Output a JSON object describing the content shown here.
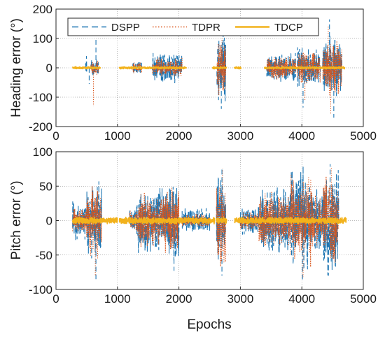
{
  "chart_data": [
    {
      "type": "line",
      "title": "",
      "xlabel": "",
      "ylabel": "Heading error (°)",
      "xlim": [
        0,
        5000
      ],
      "ylim": [
        -200,
        200
      ],
      "xticks": [
        "0",
        "1000",
        "2000",
        "3000",
        "4000",
        "5000"
      ],
      "yticks": [
        "200",
        "100",
        "0",
        "-100",
        "-200"
      ],
      "grid": true,
      "legend_position": "top",
      "series": [
        {
          "name": "DSPP",
          "style": "dashed",
          "color": "#1f77b4",
          "segments": [
            [
              270,
              720
            ],
            [
              1030,
              2120
            ],
            [
              2550,
              2780
            ],
            [
              2900,
              3010
            ],
            [
              3390,
              4700
            ]
          ],
          "bursts": [
            [
              480,
              500,
              60
            ],
            [
              570,
              690,
              30
            ],
            [
              1250,
              1400,
              25
            ],
            [
              1570,
              2050,
              55
            ],
            [
              2620,
              2760,
              130
            ],
            [
              3430,
              3900,
              55
            ],
            [
              3930,
              4300,
              70
            ],
            [
              4340,
              4650,
              110
            ]
          ],
          "peaks": [
            [
              540,
              -55
            ],
            [
              650,
              100
            ],
            [
              2690,
              -140
            ],
            [
              2720,
              120
            ],
            [
              4020,
              -135
            ],
            [
              4450,
              165
            ],
            [
              4520,
              -170
            ]
          ]
        },
        {
          "name": "TDPR",
          "style": "dotted",
          "color": "#d95319",
          "segments": [
            [
              270,
              720
            ],
            [
              1030,
              2120
            ],
            [
              2550,
              2780
            ],
            [
              2900,
              3010
            ],
            [
              3390,
              4700
            ]
          ],
          "bursts": [
            [
              570,
              690,
              25
            ],
            [
              1250,
              1400,
              20
            ],
            [
              1570,
              2050,
              35
            ],
            [
              2620,
              2760,
              100
            ],
            [
              3430,
              3900,
              40
            ],
            [
              3930,
              4300,
              55
            ],
            [
              4340,
              4650,
              100
            ]
          ],
          "peaks": [
            [
              610,
              -130
            ],
            [
              2700,
              100
            ],
            [
              4050,
              -110
            ],
            [
              4470,
              -160
            ],
            [
              4430,
              140
            ]
          ]
        },
        {
          "name": "TDCP",
          "style": "solid",
          "color": "#f2b21c",
          "segments": [
            [
              270,
              720
            ],
            [
              1030,
              2120
            ],
            [
              2550,
              2780
            ],
            [
              2900,
              3010
            ],
            [
              3390,
              4700
            ]
          ],
          "bursts": [
            [
              270,
              4700,
              4
            ]
          ],
          "peaks": []
        }
      ]
    },
    {
      "type": "line",
      "title": "",
      "xlabel": "Epochs",
      "ylabel": "Pitch error (°)",
      "xlim": [
        0,
        5000
      ],
      "ylim": [
        -100,
        100
      ],
      "xticks": [
        "0",
        "1000",
        "2000",
        "3000",
        "4000",
        "5000"
      ],
      "yticks": [
        "100",
        "50",
        "0",
        "-50",
        "-100"
      ],
      "grid": true,
      "series": [
        {
          "name": "DSPP",
          "style": "dashed",
          "color": "#1f77b4",
          "segments": [
            [
              270,
              1000
            ],
            [
              1030,
              2580
            ],
            [
              2610,
              2780
            ],
            [
              2910,
              4720
            ]
          ],
          "bursts": [
            [
              270,
              500,
              28
            ],
            [
              500,
              740,
              60
            ],
            [
              1200,
              1330,
              22
            ],
            [
              1330,
              1560,
              55
            ],
            [
              1560,
              1750,
              48
            ],
            [
              1750,
              2000,
              65
            ],
            [
              2050,
              2500,
              18
            ],
            [
              2600,
              2760,
              80
            ],
            [
              3000,
              3300,
              22
            ],
            [
              3300,
              3800,
              50
            ],
            [
              3800,
              4150,
              80
            ],
            [
              4150,
              4350,
              50
            ],
            [
              4350,
              4600,
              80
            ]
          ],
          "peaks": [
            [
              650,
              -85
            ],
            [
              1920,
              -73
            ],
            [
              2700,
              78
            ],
            [
              2700,
              -80
            ],
            [
              4010,
              -88
            ],
            [
              4460,
              82
            ]
          ]
        },
        {
          "name": "TDPR",
          "style": "dotted",
          "color": "#d95319",
          "segments": [
            [
              270,
              1000
            ],
            [
              1030,
              2580
            ],
            [
              2610,
              2780
            ],
            [
              2910,
              4720
            ]
          ],
          "bursts": [
            [
              270,
              500,
              20
            ],
            [
              500,
              740,
              55
            ],
            [
              1200,
              1330,
              18
            ],
            [
              1330,
              1560,
              45
            ],
            [
              1560,
              1750,
              40
            ],
            [
              1750,
              2000,
              55
            ],
            [
              2050,
              2500,
              10
            ],
            [
              2600,
              2760,
              70
            ],
            [
              3000,
              3300,
              15
            ],
            [
              3300,
              3800,
              42
            ],
            [
              3800,
              4150,
              70
            ],
            [
              4150,
              4350,
              40
            ],
            [
              4350,
              4600,
              75
            ]
          ],
          "peaks": [
            [
              640,
              -80
            ],
            [
              2710,
              75
            ],
            [
              4020,
              -82
            ],
            [
              4480,
              78
            ]
          ]
        },
        {
          "name": "TDCP",
          "style": "solid",
          "color": "#f2b21c",
          "segments": [
            [
              270,
              1000
            ],
            [
              1030,
              2580
            ],
            [
              2610,
              2780
            ],
            [
              2910,
              4720
            ]
          ],
          "bursts": [
            [
              270,
              4720,
              5
            ]
          ],
          "peaks": []
        }
      ]
    }
  ]
}
